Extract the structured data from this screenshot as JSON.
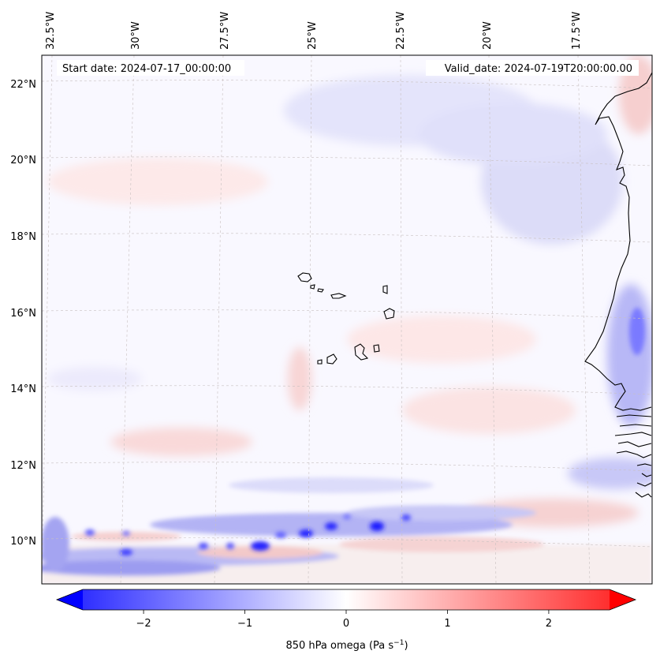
{
  "map": {
    "start_label": "Start date: 2024-07-17_00:00:00",
    "valid_label": "Valid_date: 2024-07-19T20:00:00.00",
    "lon_ticks": [
      "32.5°W",
      "30°W",
      "27.5°W",
      "25°W",
      "22.5°W",
      "20°W",
      "17.5°W"
    ],
    "lat_ticks": [
      "22°N",
      "20°N",
      "18°N",
      "16°N",
      "14°N",
      "12°N",
      "10°N"
    ],
    "extent": {
      "lon_min": -32.8,
      "lon_max": -16.3,
      "lat_min": 8.8,
      "lat_max": 22.8
    }
  },
  "colorbar": {
    "label_main": "850 hPa omega (Pa s",
    "label_exp": "−1",
    "label_end": ")",
    "ticks": [
      "−2",
      "−1",
      "0",
      "1",
      "2"
    ],
    "tick_values": [
      -2,
      -1,
      0,
      1,
      2
    ],
    "range": [
      -2.6,
      2.6
    ],
    "cmap": "bwr",
    "colors": {
      "low": "#0000ff",
      "mid": "#ffffff",
      "high": "#ff0000"
    }
  }
}
